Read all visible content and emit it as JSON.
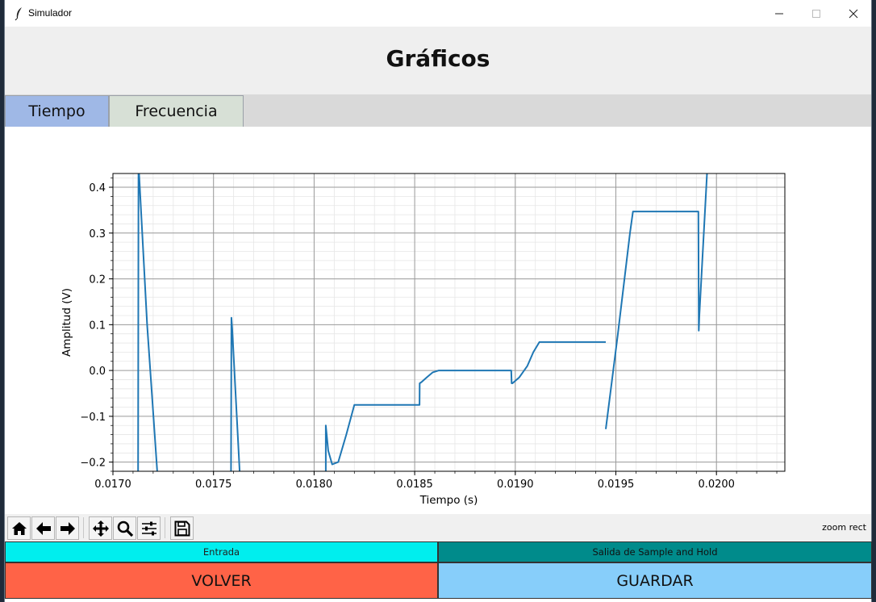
{
  "window": {
    "title": "Simulador"
  },
  "heading": "Gráficos",
  "tabs": [
    {
      "label": "Tiempo",
      "active": true
    },
    {
      "label": "Frecuencia",
      "active": false
    }
  ],
  "toolbar": {
    "buttons": [
      "home-icon",
      "back-arrow-icon",
      "forward-arrow-icon",
      "pan-icon",
      "zoom-icon",
      "configure-subplots-icon",
      "save-icon"
    ],
    "status": "zoom rect"
  },
  "legend": {
    "left": "Entrada",
    "right": "Salida de Sample and Hold"
  },
  "buttons": {
    "volver": "VOLVER",
    "guardar": "GUARDAR"
  },
  "colors": {
    "tab_active": "#9fb8e6",
    "tab_inactive": "#d7e0d6",
    "entrada": "#00eeee",
    "salida": "#008b8b",
    "volver": "#ff6347",
    "guardar": "#87cefa",
    "line": "#1f77b4"
  },
  "chart_data": {
    "type": "line",
    "xlabel": "Tiempo (s)",
    "ylabel": "Amplitud (V)",
    "xlim": [
      0.017,
      0.02034
    ],
    "ylim": [
      -0.22,
      0.43
    ],
    "xticks": [
      "0.0170",
      "0.0175",
      "0.0180",
      "0.0185",
      "0.0190",
      "0.0195",
      "0.0200"
    ],
    "xtick_values": [
      0.017,
      0.0175,
      0.018,
      0.0185,
      0.019,
      0.0195,
      0.02
    ],
    "yticks": [
      "−0.2",
      "−0.1",
      "0.0",
      "0.1",
      "0.2",
      "0.3",
      "0.4"
    ],
    "ytick_values": [
      -0.2,
      -0.1,
      0.0,
      0.1,
      0.2,
      0.3,
      0.4
    ],
    "grid": {
      "major": true,
      "minor": true
    },
    "series": [
      {
        "x": [
          0.017125,
          0.017127,
          0.01713,
          0.01717,
          0.01722,
          null,
          0.017587,
          0.017589,
          0.017593,
          0.01763,
          null,
          0.018058,
          0.018058,
          0.01807,
          0.01809,
          0.01812,
          0.01816,
          0.0182,
          0.0185,
          0.018524,
          0.018525,
          0.018535,
          0.01856,
          0.01859,
          0.01862,
          0.01866,
          0.0187,
          0.01898,
          0.018982,
          0.018986,
          0.01902,
          0.01906,
          0.01909,
          0.01912,
          0.01945,
          0.018999,
          0.01945,
          0.01951,
          0.01957,
          0.019585,
          0.01991,
          0.019912,
          0.019915,
          0.019953
        ],
        "y": [
          -0.22,
          0.43,
          0.43,
          0.1,
          -0.22,
          null,
          -0.22,
          0.115,
          0.09,
          -0.22,
          null,
          -0.22,
          -0.12,
          -0.175,
          -0.205,
          -0.2,
          -0.14,
          -0.075,
          -0.075,
          -0.075,
          -0.028,
          -0.025,
          -0.015,
          -0.004,
          0.0,
          0.0,
          0.0,
          0.0,
          -0.028,
          -0.028,
          -0.015,
          0.01,
          0.04,
          0.062,
          0.062,
          null,
          -0.128,
          0.08,
          0.3,
          0.347,
          0.347,
          0.087,
          0.12,
          0.43
        ]
      }
    ]
  }
}
